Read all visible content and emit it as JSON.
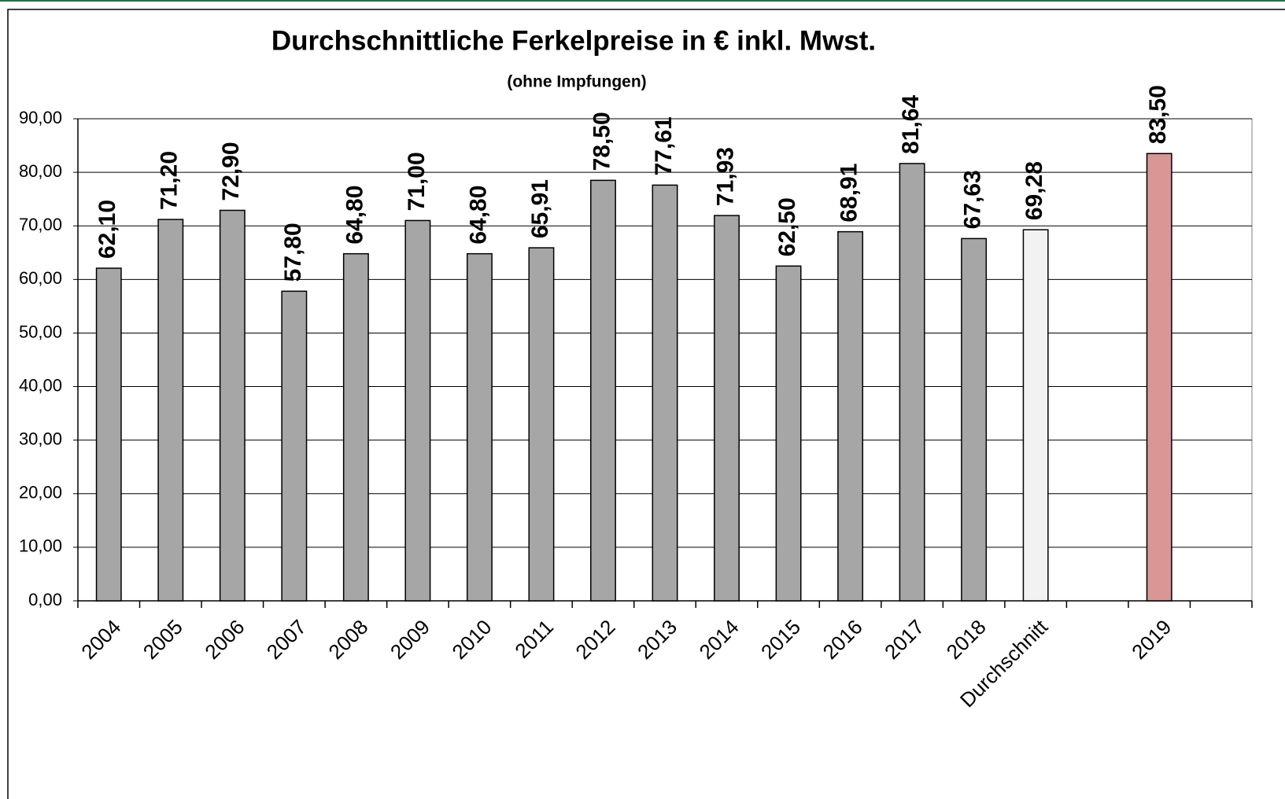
{
  "chart_data": {
    "type": "bar",
    "title": "Durchschnittliche Ferkelpreise in € inkl. Mwst.",
    "subtitle": "(ohne Impfungen)",
    "categories": [
      "2004",
      "2005",
      "2006",
      "2007",
      "2008",
      "2009",
      "2010",
      "2011",
      "2012",
      "2013",
      "2014",
      "2015",
      "2016",
      "2017",
      "2018",
      "Durchschnitt",
      null,
      "2019",
      null
    ],
    "values": [
      62.1,
      71.2,
      72.9,
      57.8,
      64.8,
      71.0,
      64.8,
      65.91,
      78.5,
      77.61,
      71.93,
      62.5,
      68.91,
      81.64,
      67.63,
      69.28,
      null,
      83.5,
      null
    ],
    "value_labels": [
      "62,10",
      "71,20",
      "72,90",
      "57,80",
      "64,80",
      "71,00",
      "64,80",
      "65,91",
      "78,50",
      "77,61",
      "71,93",
      "62,50",
      "68,91",
      "81,64",
      "67,63",
      "69,28",
      null,
      "83,50",
      null
    ],
    "colors": [
      "#a6a6a6",
      "#a6a6a6",
      "#a6a6a6",
      "#a6a6a6",
      "#a6a6a6",
      "#a6a6a6",
      "#a6a6a6",
      "#a6a6a6",
      "#a6a6a6",
      "#a6a6a6",
      "#a6a6a6",
      "#a6a6a6",
      "#a6a6a6",
      "#a6a6a6",
      "#a6a6a6",
      "#f2f2f2",
      null,
      "#d99694",
      null
    ],
    "ylim": [
      0,
      90
    ],
    "yticks": [
      {
        "value": 0,
        "label": "0,00"
      },
      {
        "value": 10,
        "label": "10,00"
      },
      {
        "value": 20,
        "label": "20,00"
      },
      {
        "value": 30,
        "label": "30,00"
      },
      {
        "value": 40,
        "label": "40,00"
      },
      {
        "value": 50,
        "label": "50,00"
      },
      {
        "value": 60,
        "label": "60,00"
      },
      {
        "value": 70,
        "label": "70,00"
      },
      {
        "value": 80,
        "label": "80,00"
      },
      {
        "value": 90,
        "label": "90,00"
      }
    ],
    "grid": true
  }
}
